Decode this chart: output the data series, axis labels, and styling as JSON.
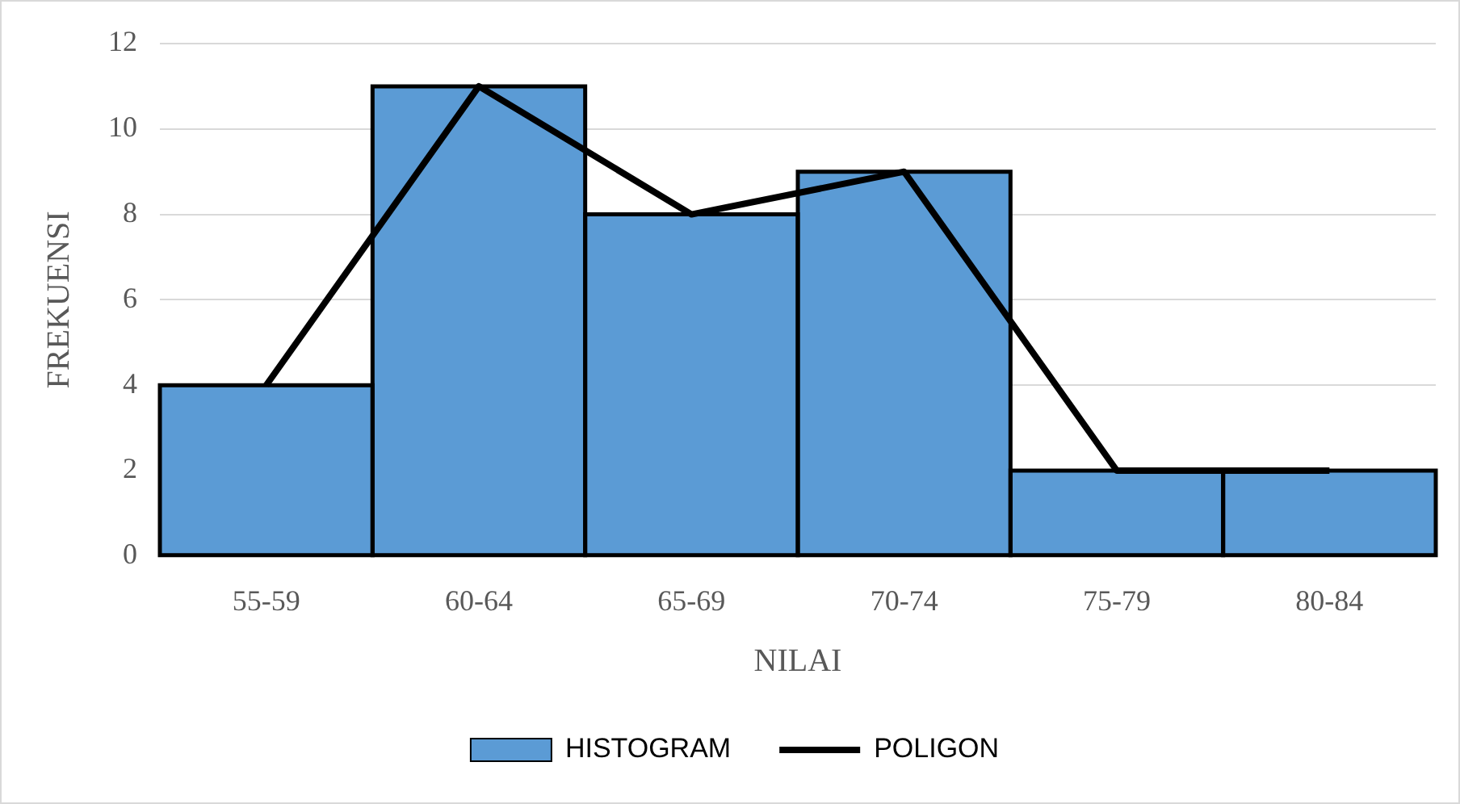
{
  "chart_data": {
    "type": "bar",
    "categories": [
      "55-59",
      "60-64",
      "65-69",
      "70-74",
      "75-79",
      "80-84"
    ],
    "series": [
      {
        "name": "HISTOGRAM",
        "color": "#5b9bd5",
        "values": [
          4,
          11,
          8,
          9,
          2,
          2
        ]
      },
      {
        "name": "POLIGON",
        "type": "line",
        "color": "#000000",
        "values": [
          4,
          11,
          8,
          9,
          2,
          2
        ]
      }
    ],
    "xlabel": "NILAI",
    "ylabel": "FREKUENSI",
    "ylim": [
      0,
      12
    ],
    "yticks": [
      0,
      2,
      4,
      6,
      8,
      10,
      12
    ],
    "grid": "y",
    "legend": "bottom"
  }
}
